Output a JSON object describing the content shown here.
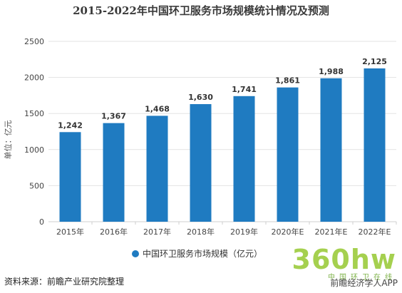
{
  "chart_data": {
    "type": "bar",
    "title": "2015-2022年中国环卫服务市场规模统计情况及预测",
    "ylabel": "单位：亿元",
    "xlabel": "",
    "categories": [
      "2015年",
      "2016年",
      "2017年",
      "2018年",
      "2019年",
      "2020年E",
      "2021年E",
      "2022年E"
    ],
    "series": [
      {
        "name": "中国环卫服务市场规模（亿元）",
        "values": [
          1242,
          1367,
          1468,
          1630,
          1741,
          1861,
          1988,
          2125
        ],
        "value_labels": [
          "1,242",
          "1,367",
          "1,468",
          "1,630",
          "1,741",
          "1,861",
          "1,988",
          "2,125"
        ]
      }
    ],
    "ylim": [
      0,
      2500
    ],
    "yticks": [
      0,
      500,
      1000,
      1500,
      2000,
      2500
    ],
    "grid": true,
    "legend_position": "bottom-center",
    "colors": {
      "bar": "#1f7bc1",
      "grid": "#e3e3e3",
      "axis": "#cfcfcf"
    }
  },
  "footer": {
    "source": "资料来源：前瞻产业研究院整理",
    "watermark_brand": "360hw",
    "watermark_tagline": "中国环卫在线",
    "app_credit": "前瞻经济学人APP"
  }
}
